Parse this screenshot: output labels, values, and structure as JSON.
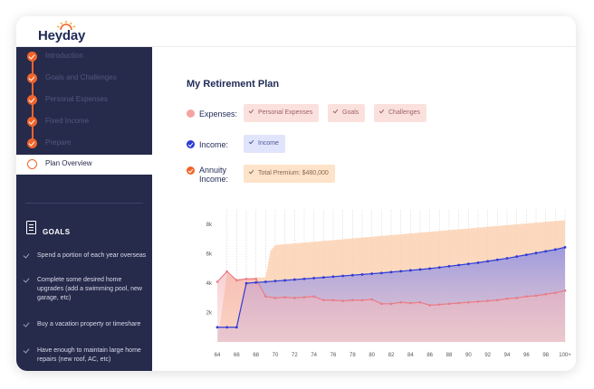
{
  "app": {
    "logo_text": "Heyday"
  },
  "sidebar": {
    "steps": [
      {
        "label": "Introduction",
        "state": "done"
      },
      {
        "label": "Goals and Challenges",
        "state": "done"
      },
      {
        "label": "Personal Expenses",
        "state": "done"
      },
      {
        "label": "Fixed Income",
        "state": "done"
      },
      {
        "label": "Prepare",
        "state": "done"
      },
      {
        "label": "Plan Overview",
        "state": "active"
      }
    ],
    "goals_title": "GOALS",
    "goals": [
      "Spend a portion of each year overseas",
      "Complete some desired home upgrades (add a swimming pool, new garage, etc)",
      "Buy a vacation property or timeshare",
      "Have enough to maintain large home repairs (new roof, AC, etc)"
    ]
  },
  "main": {
    "title": "My Retirement Plan",
    "expenses": {
      "label": "Expenses:",
      "chips": [
        "Personal Expenses",
        "Goals",
        "Challenges"
      ]
    },
    "income": {
      "label": "Income:",
      "chips": [
        "Income"
      ]
    },
    "annuity": {
      "label_line1": "Annuity",
      "label_line2": "Income:",
      "chips": [
        "Total Premium: $480,000"
      ]
    }
  },
  "colors": {
    "expenses": "#f5a3a1",
    "income": "#2f3bd6",
    "annuity": "#f0642a",
    "sidebar_bg": "#262a4b"
  },
  "chart_data": {
    "type": "area",
    "x_ticks": [
      "64",
      "66",
      "68",
      "70",
      "72",
      "74",
      "76",
      "78",
      "80",
      "82",
      "84",
      "86",
      "88",
      "90",
      "92",
      "94",
      "96",
      "98",
      "100+"
    ],
    "y_ticks": [
      "2k",
      "4k",
      "6k",
      "8k"
    ],
    "ylim": [
      0,
      9000
    ],
    "xlim": [
      64,
      100
    ],
    "series": [
      {
        "name": "Annuity Income",
        "kind": "area",
        "x": [
          64,
          65,
          66,
          67,
          68,
          69,
          69.5,
          70,
          100
        ],
        "y": [
          0,
          4600,
          4300,
          4300,
          4400,
          4400,
          6200,
          6600,
          8300
        ]
      },
      {
        "name": "Income",
        "kind": "line",
        "x": [
          64,
          65,
          66,
          67,
          68,
          69,
          70,
          71,
          72,
          73,
          74,
          75,
          76,
          77,
          78,
          79,
          80,
          81,
          82,
          83,
          84,
          85,
          86,
          87,
          88,
          89,
          90,
          91,
          92,
          93,
          94,
          95,
          96,
          97,
          98,
          99,
          100
        ],
        "y": [
          1000,
          1000,
          1000,
          4000,
          4050,
          4100,
          4150,
          4200,
          4250,
          4300,
          4350,
          4400,
          4450,
          4500,
          4550,
          4600,
          4650,
          4700,
          4760,
          4820,
          4880,
          4940,
          5000,
          5080,
          5160,
          5240,
          5320,
          5400,
          5500,
          5600,
          5700,
          5820,
          5940,
          6060,
          6180,
          6300,
          6450
        ]
      },
      {
        "name": "Expenses",
        "kind": "line",
        "x": [
          64,
          65,
          66,
          67,
          68,
          69,
          70,
          71,
          72,
          73,
          74,
          75,
          76,
          77,
          78,
          79,
          80,
          81,
          82,
          83,
          84,
          85,
          86,
          87,
          88,
          89,
          90,
          91,
          92,
          93,
          94,
          95,
          96,
          97,
          98,
          99,
          100
        ],
        "y": [
          4100,
          4800,
          4200,
          4300,
          4300,
          3100,
          3000,
          3050,
          3000,
          3050,
          3100,
          2850,
          2850,
          2800,
          2850,
          2850,
          2900,
          2600,
          2600,
          2700,
          2650,
          2700,
          2500,
          2550,
          2600,
          2650,
          2700,
          2750,
          2800,
          2850,
          2950,
          3000,
          3100,
          3150,
          3250,
          3350,
          3500
        ]
      }
    ]
  }
}
